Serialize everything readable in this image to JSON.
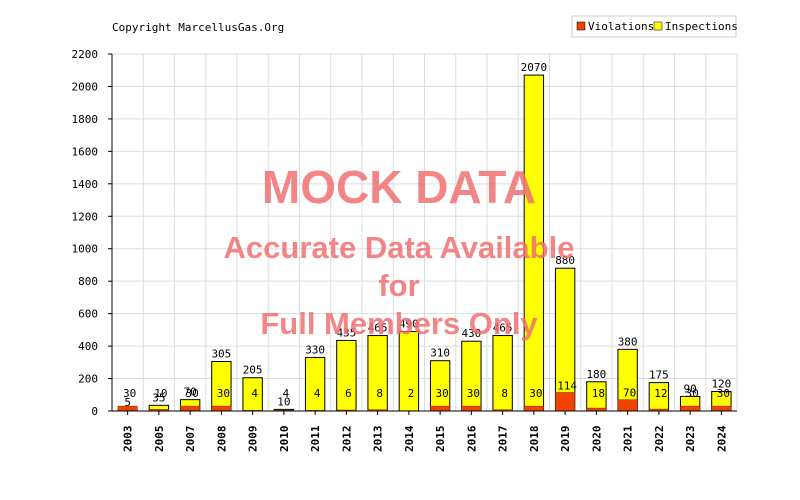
{
  "copyright": "Copyright MarcellusGas.Org",
  "legend": {
    "placement": "top-right",
    "items": [
      {
        "label": "Violations",
        "color": "#ee4400"
      },
      {
        "label": "Inspections",
        "color": "#ffff00"
      }
    ]
  },
  "watermark": {
    "line1": "MOCK DATA",
    "line2": "Accurate Data Available",
    "line3": "for",
    "line4": "Full Members Only",
    "color": "#f07070"
  },
  "chart_data": {
    "type": "bar",
    "categories": [
      "2003",
      "2005",
      "2007",
      "2008",
      "2009",
      "2010",
      "2011",
      "2012",
      "2013",
      "2014",
      "2015",
      "2016",
      "2017",
      "2018",
      "2019",
      "2020",
      "2021",
      "2022",
      "2023",
      "2024"
    ],
    "series": [
      {
        "name": "Violations",
        "color": "#ee4400",
        "values": [
          30,
          10,
          30,
          30,
          4,
          4,
          4,
          6,
          8,
          2,
          30,
          30,
          8,
          30,
          114,
          18,
          70,
          12,
          30,
          30
        ]
      },
      {
        "name": "Inspections",
        "color": "#ffff00",
        "values": [
          5,
          35,
          70,
          305,
          205,
          10,
          330,
          435,
          465,
          490,
          310,
          430,
          465,
          2070,
          880,
          180,
          380,
          175,
          90,
          120
        ]
      }
    ],
    "ylim": [
      0,
      2200
    ],
    "yticks": [
      0,
      200,
      400,
      600,
      800,
      1000,
      1200,
      1400,
      1600,
      1800,
      2000,
      2200
    ],
    "grid": true
  }
}
